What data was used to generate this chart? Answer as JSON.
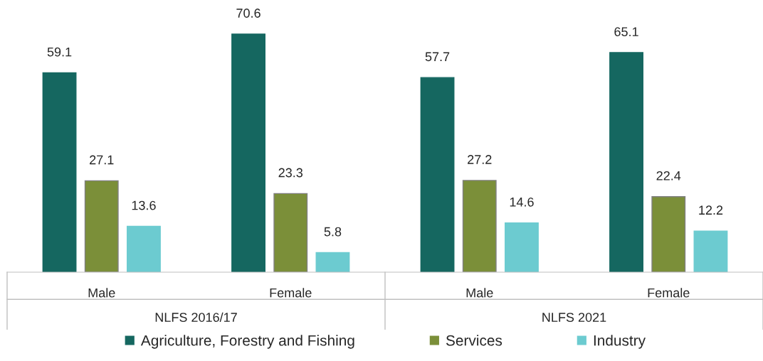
{
  "chart_data": {
    "type": "bar",
    "categories": [
      "Male",
      "Female",
      "Male",
      "Female"
    ],
    "series": [
      {
        "name": "Agriculture, Forestry and Fishing",
        "color": "#156760",
        "values": [
          59.1,
          70.6,
          57.7,
          65.1
        ]
      },
      {
        "name": "Services",
        "color": "#7b8f39",
        "values": [
          27.1,
          23.3,
          27.2,
          22.4
        ]
      },
      {
        "name": "Industry",
        "color": "#6ccbd0",
        "values": [
          13.6,
          5.8,
          14.6,
          12.2
        ]
      }
    ],
    "annotations": [
      "NLFS 2016/17",
      "NLFS 2021"
    ],
    "data_labels": true,
    "grid": false,
    "legend": "bottom"
  }
}
